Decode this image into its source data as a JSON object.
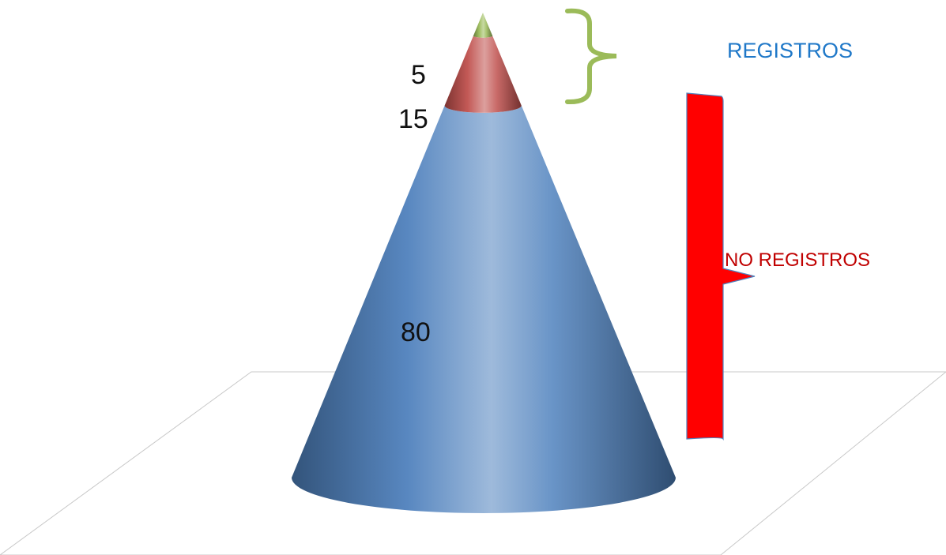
{
  "chart_data": {
    "type": "pyramid",
    "shape": "cone",
    "segments_bottom_to_top": [
      {
        "value": 80,
        "label": "80",
        "color": "#4F81BD"
      },
      {
        "value": 15,
        "label": "15",
        "color": "#C0504D"
      },
      {
        "value": 5,
        "label": "5",
        "color": "#9BBB59"
      }
    ],
    "annotations": [
      {
        "text": "REGISTROS",
        "bracket_color": "#9BBB59",
        "text_color": "#1F78C8",
        "spans": [
          5,
          15
        ]
      },
      {
        "text": "NO REGISTROS",
        "bracket_color": "#FF0000",
        "text_color": "#C00000",
        "spans": [
          80
        ]
      }
    ],
    "title": "",
    "xlabel": "",
    "ylabel": "",
    "floor": "perspective-plane",
    "grid": false,
    "legend": "none"
  }
}
